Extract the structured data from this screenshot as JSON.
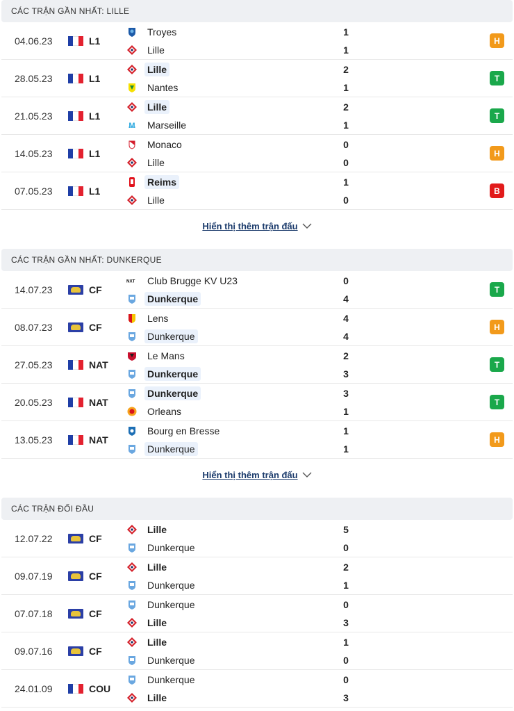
{
  "sections": [
    {
      "title": "CÁC TRẬN GẦN NHẤT: LILLE",
      "more_label": "Hiển thị thêm trận đấu",
      "matches": [
        {
          "date": "04.06.23",
          "flag": "fr",
          "league": "L1",
          "home": "Troyes",
          "home_logo": "troyes",
          "home_score": "1",
          "away": "Lille",
          "away_logo": "lille",
          "away_score": "1",
          "winner": "none",
          "result": "H"
        },
        {
          "date": "28.05.23",
          "flag": "fr",
          "league": "L1",
          "home": "Lille",
          "home_logo": "lille",
          "home_score": "2",
          "away": "Nantes",
          "away_logo": "nantes",
          "away_score": "1",
          "winner": "home",
          "result": "T"
        },
        {
          "date": "21.05.23",
          "flag": "fr",
          "league": "L1",
          "home": "Lille",
          "home_logo": "lille",
          "home_score": "2",
          "away": "Marseille",
          "away_logo": "marseille",
          "away_score": "1",
          "winner": "home",
          "result": "T"
        },
        {
          "date": "14.05.23",
          "flag": "fr",
          "league": "L1",
          "home": "Monaco",
          "home_logo": "monaco",
          "home_score": "0",
          "away": "Lille",
          "away_logo": "lille",
          "away_score": "0",
          "winner": "none",
          "result": "H"
        },
        {
          "date": "07.05.23",
          "flag": "fr",
          "league": "L1",
          "home": "Reims",
          "home_logo": "reims",
          "home_score": "1",
          "away": "Lille",
          "away_logo": "lille",
          "away_score": "0",
          "winner": "home",
          "result": "B"
        }
      ]
    },
    {
      "title": "CÁC TRẬN GẦN NHẤT: DUNKERQUE",
      "more_label": "Hiển thị thêm trận đấu",
      "matches": [
        {
          "date": "14.07.23",
          "flag": "cf",
          "league": "CF",
          "home": "Club Brugge KV U23",
          "home_logo": "brugge",
          "home_score": "0",
          "away": "Dunkerque",
          "away_logo": "dunkerque",
          "away_score": "4",
          "winner": "away",
          "result": "T"
        },
        {
          "date": "08.07.23",
          "flag": "cf",
          "league": "CF",
          "home": "Lens",
          "home_logo": "lens",
          "home_score": "4",
          "away": "Dunkerque",
          "away_logo": "dunkerque",
          "away_score": "4",
          "winner": "none",
          "result": "H",
          "away_hl": true
        },
        {
          "date": "27.05.23",
          "flag": "fr",
          "league": "NAT",
          "home": "Le Mans",
          "home_logo": "lemans",
          "home_score": "2",
          "away": "Dunkerque",
          "away_logo": "dunkerque",
          "away_score": "3",
          "winner": "away",
          "result": "T"
        },
        {
          "date": "20.05.23",
          "flag": "fr",
          "league": "NAT",
          "home": "Dunkerque",
          "home_logo": "dunkerque",
          "home_score": "3",
          "away": "Orleans",
          "away_logo": "orleans",
          "away_score": "1",
          "winner": "home",
          "result": "T"
        },
        {
          "date": "13.05.23",
          "flag": "fr",
          "league": "NAT",
          "home": "Bourg en Bresse",
          "home_logo": "bourg",
          "home_score": "1",
          "away": "Dunkerque",
          "away_logo": "dunkerque",
          "away_score": "1",
          "winner": "none",
          "result": "H",
          "away_hl": true
        }
      ]
    },
    {
      "title": "CÁC TRẬN ĐỐI ĐẦU",
      "matches": [
        {
          "date": "12.07.22",
          "flag": "cf",
          "league": "CF",
          "home": "Lille",
          "home_logo": "lille",
          "home_score": "5",
          "away": "Dunkerque",
          "away_logo": "dunkerque",
          "away_score": "0",
          "winner": "home-bold"
        },
        {
          "date": "09.07.19",
          "flag": "cf",
          "league": "CF",
          "home": "Lille",
          "home_logo": "lille",
          "home_score": "2",
          "away": "Dunkerque",
          "away_logo": "dunkerque",
          "away_score": "1",
          "winner": "home-bold"
        },
        {
          "date": "07.07.18",
          "flag": "cf",
          "league": "CF",
          "home": "Dunkerque",
          "home_logo": "dunkerque",
          "home_score": "0",
          "away": "Lille",
          "away_logo": "lille",
          "away_score": "3",
          "winner": "away-bold"
        },
        {
          "date": "09.07.16",
          "flag": "cf",
          "league": "CF",
          "home": "Lille",
          "home_logo": "lille",
          "home_score": "1",
          "away": "Dunkerque",
          "away_logo": "dunkerque",
          "away_score": "0",
          "winner": "home-bold"
        },
        {
          "date": "24.01.09",
          "flag": "fr",
          "league": "COU",
          "home": "Dunkerque",
          "home_logo": "dunkerque",
          "home_score": "0",
          "away": "Lille",
          "away_logo": "lille",
          "away_score": "3",
          "winner": "away-bold"
        }
      ]
    }
  ],
  "colors": {
    "draw": "#f29a1b",
    "win": "#1aa84b",
    "loss": "#e21b1b",
    "highlight": "#eaf1fb"
  }
}
